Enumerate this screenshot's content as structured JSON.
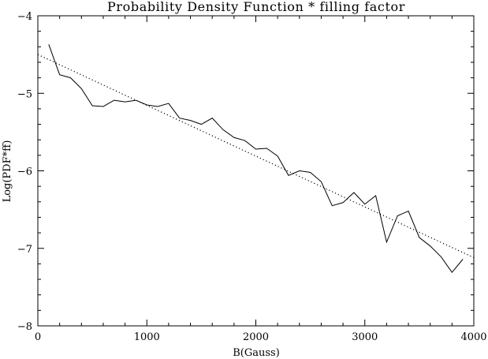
{
  "chart_data": {
    "type": "line",
    "title": "Probability Density Function * filling factor",
    "xlabel": "B(Gauss)",
    "ylabel": "Log(PDF*ff)",
    "xlim": [
      0,
      4000
    ],
    "ylim": [
      -8,
      -4
    ],
    "xticks": [
      0,
      1000,
      2000,
      3000,
      4000
    ],
    "xtick_labels": [
      "0",
      "1000",
      "2000",
      "3000",
      "4000"
    ],
    "yticks": [
      -8,
      -7,
      -6,
      -5,
      -4
    ],
    "ytick_labels": [
      "−8",
      "−7",
      "−6",
      "−5",
      "−4"
    ],
    "grid": false,
    "legend": "none",
    "series": [
      {
        "style": "solid",
        "color": "#000000",
        "x": [
          100,
          200,
          300,
          400,
          500,
          600,
          700,
          800,
          900,
          1000,
          1100,
          1200,
          1300,
          1400,
          1500,
          1600,
          1700,
          1800,
          1900,
          2000,
          2100,
          2200,
          2300,
          2400,
          2500,
          2600,
          2700,
          2800,
          2900,
          3000,
          3100,
          3200,
          3300,
          3400,
          3500,
          3600,
          3700,
          3800,
          3900
        ],
        "values": [
          -4.37,
          -4.76,
          -4.8,
          -4.94,
          -5.16,
          -5.17,
          -5.09,
          -5.11,
          -5.09,
          -5.15,
          -5.17,
          -5.13,
          -5.32,
          -5.35,
          -5.4,
          -5.32,
          -5.47,
          -5.57,
          -5.61,
          -5.72,
          -5.71,
          -5.81,
          -6.06,
          -6.0,
          -6.02,
          -6.14,
          -6.45,
          -6.41,
          -6.28,
          -6.43,
          -6.32,
          -6.92,
          -6.58,
          -6.52,
          -6.86,
          -6.97,
          -7.11,
          -7.31,
          -7.14
        ]
      },
      {
        "style": "dotted",
        "color": "#000000",
        "x": [
          0,
          4000
        ],
        "values": [
          -4.5,
          -7.12
        ]
      }
    ]
  }
}
